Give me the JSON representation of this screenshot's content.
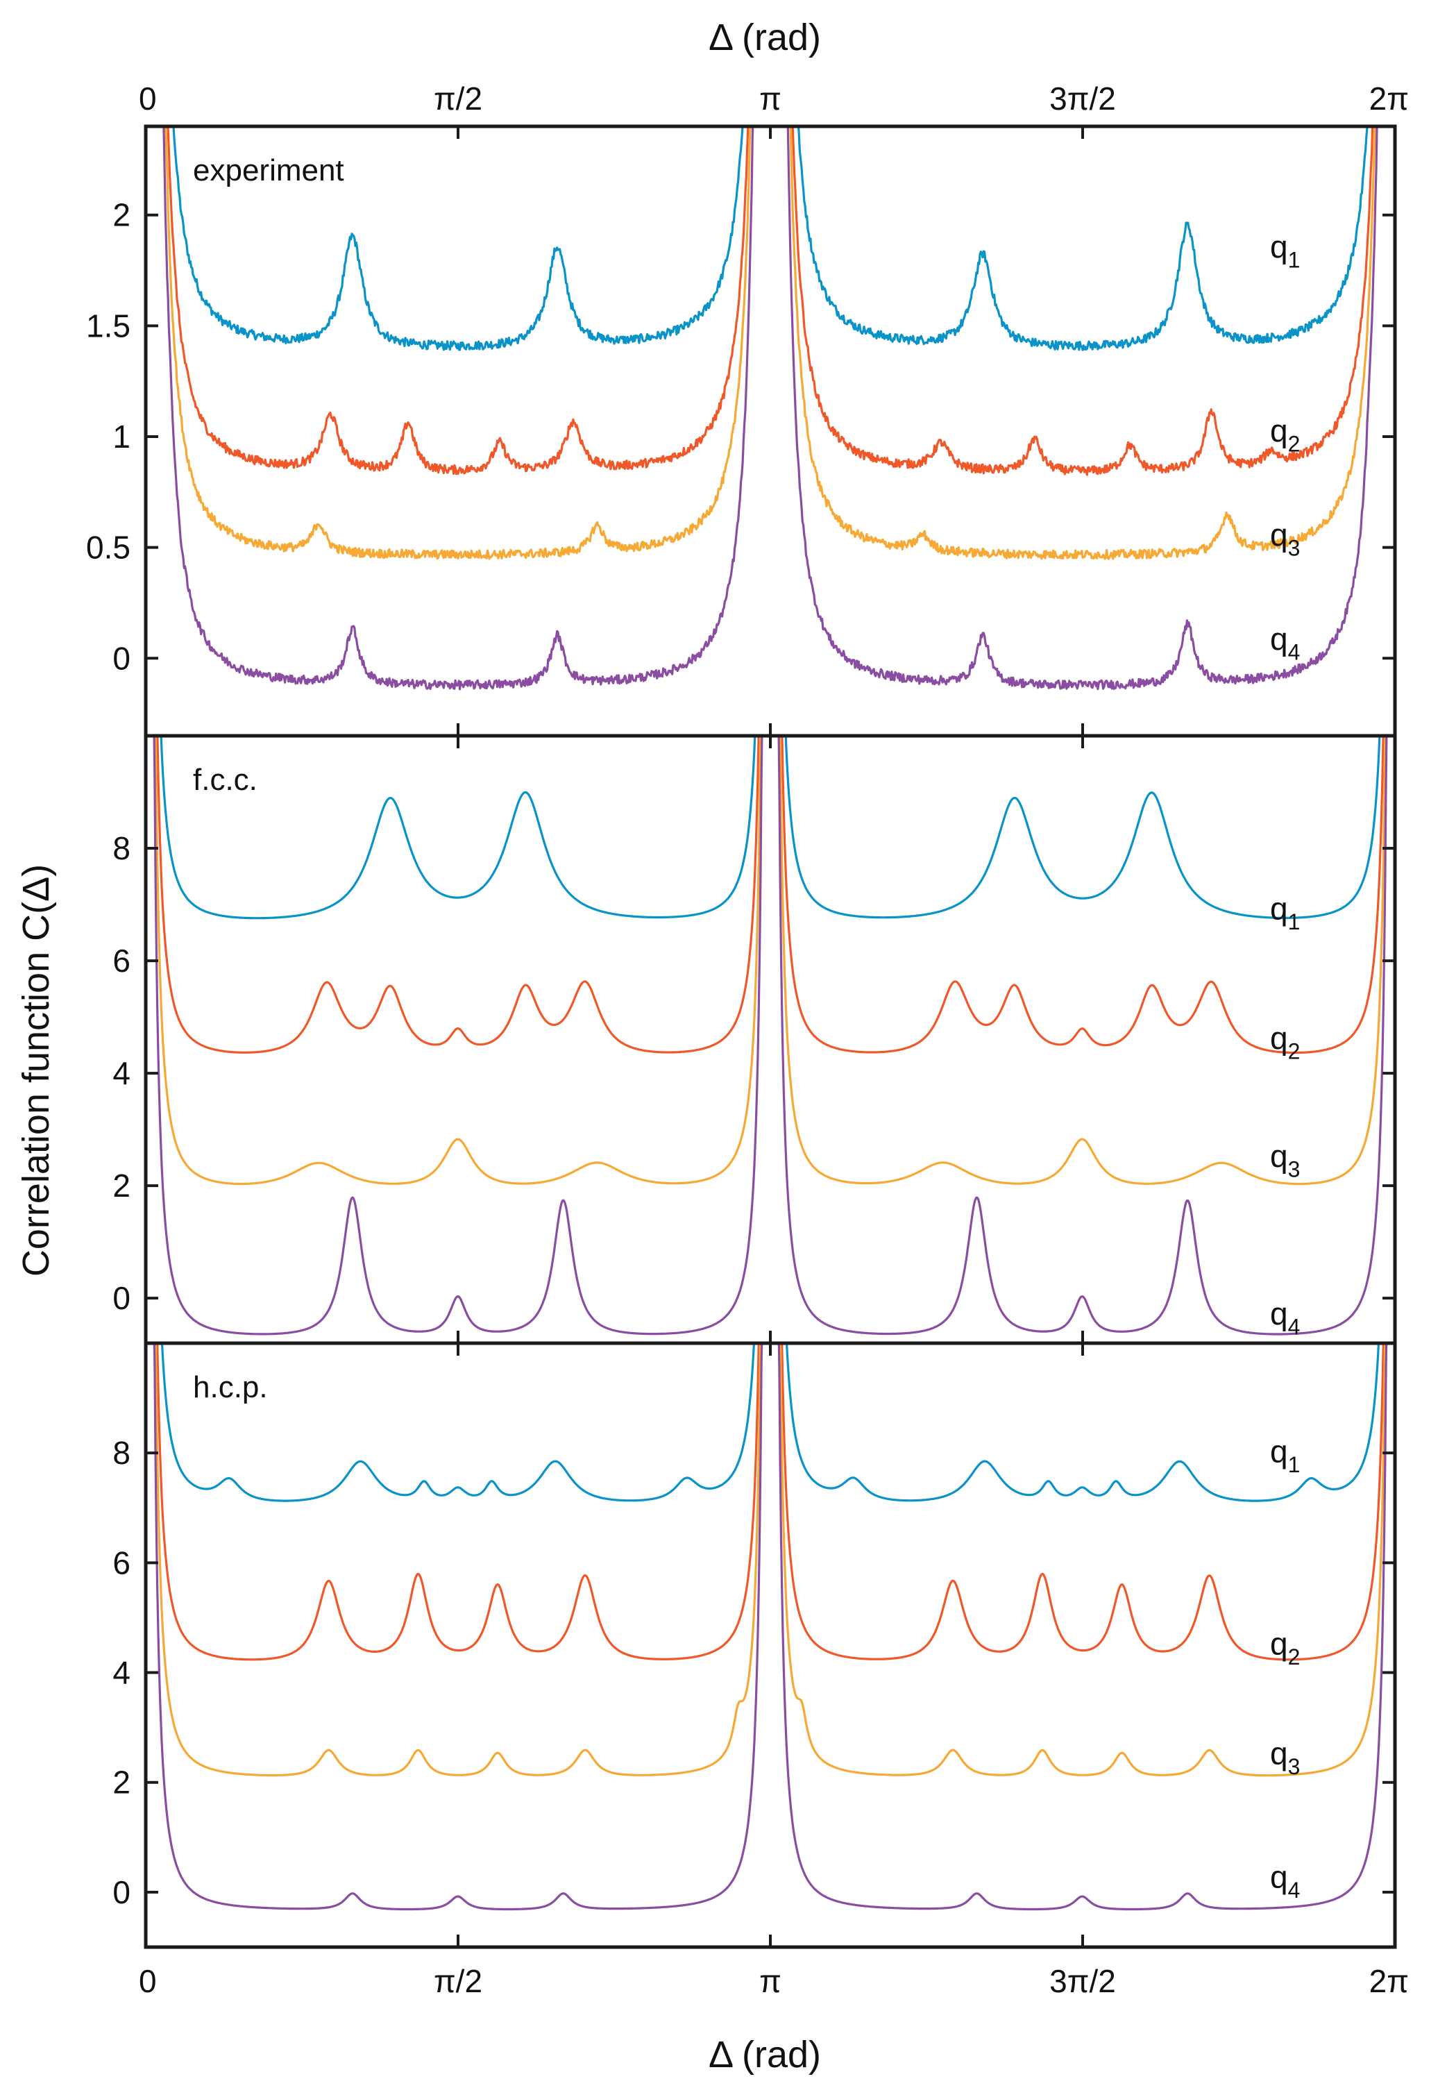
{
  "chart_data": {
    "type": "line",
    "shared_axes": {
      "xlabel": "Δ (rad)",
      "ylabel": "Correlation function C(Δ)",
      "xlim": [
        0,
        6.2832
      ],
      "x_tick_values": [
        0,
        1.5708,
        3.1416,
        4.7124,
        6.2832
      ],
      "x_tick_labels": [
        "0",
        "π/2",
        "π",
        "3π/2",
        "2π"
      ],
      "series_colors": {
        "q1": "#0a93c8",
        "q2": "#f0582a",
        "q3": "#f7a935",
        "q4": "#8a4da2"
      }
    },
    "panels": [
      {
        "id": "experiment",
        "label": "experiment",
        "ylim": [
          -0.35,
          2.4
        ],
        "y_ticks": [
          0,
          0.5,
          1,
          1.5,
          2
        ],
        "y_tick_labels": [
          "0",
          "0.5",
          "1",
          "1.5",
          "2"
        ],
        "noise": 0.018,
        "series": [
          {
            "name": "q1",
            "label": "q",
            "subscript": "1",
            "baseline": 1.38,
            "peaks": [
              [
                1.04,
                0.5,
                0.06
              ],
              [
                2.07,
                0.45,
                0.06
              ],
              [
                4.21,
                0.42,
                0.06
              ],
              [
                5.24,
                0.55,
                0.06
              ]
            ],
            "label_y": 1.85
          },
          {
            "name": "q2",
            "label": "q",
            "subscript": "2",
            "baseline": 0.82,
            "peaks": [
              [
                0.93,
                0.25,
                0.05
              ],
              [
                1.32,
                0.22,
                0.04
              ],
              [
                1.78,
                0.13,
                0.04
              ],
              [
                2.15,
                0.22,
                0.05
              ],
              [
                4.0,
                0.12,
                0.05
              ],
              [
                4.47,
                0.15,
                0.04
              ],
              [
                4.95,
                0.12,
                0.04
              ],
              [
                5.36,
                0.27,
                0.04
              ],
              [
                5.66,
                0.06,
                0.04
              ]
            ],
            "label_y": 1.02
          },
          {
            "name": "q3",
            "label": "q",
            "subscript": "3",
            "baseline": 0.45,
            "peaks": [
              [
                0.87,
                0.13,
                0.04
              ],
              [
                2.27,
                0.12,
                0.04
              ],
              [
                3.91,
                0.07,
                0.04
              ],
              [
                5.44,
                0.17,
                0.04
              ]
            ],
            "label_y": 0.55
          },
          {
            "name": "q4",
            "label": "q",
            "subscript": "4",
            "baseline": -0.14,
            "peaks": [
              [
                0.12,
                0.17,
                0.03
              ],
              [
                1.04,
                0.25,
                0.04
              ],
              [
                2.07,
                0.22,
                0.04
              ],
              [
                4.21,
                0.22,
                0.04
              ],
              [
                5.24,
                0.27,
                0.04
              ],
              [
                6.16,
                0.2,
                0.03
              ]
            ],
            "label_y": 0.08
          }
        ]
      },
      {
        "id": "fcc",
        "label": "f.c.c.",
        "ylim": [
          -0.8,
          10.0
        ],
        "y_ticks": [
          0,
          2,
          4,
          6,
          8
        ],
        "y_tick_labels": [
          "0",
          "2",
          "4",
          "6",
          "8"
        ],
        "noise": 0,
        "series": [
          {
            "name": "q1",
            "label": "q",
            "subscript": "1",
            "baseline": 6.6,
            "peaks": [
              [
                1.23,
                2.2,
                0.12
              ],
              [
                1.91,
                2.3,
                0.12
              ],
              [
                4.37,
                2.2,
                0.12
              ],
              [
                5.06,
                2.3,
                0.12
              ]
            ],
            "label_y": 6.9
          },
          {
            "name": "q2",
            "label": "q",
            "subscript": "2",
            "baseline": 4.2,
            "peaks": [
              [
                0.91,
                1.3,
                0.09
              ],
              [
                1.23,
                1.2,
                0.08
              ],
              [
                1.57,
                0.4,
                0.05
              ],
              [
                1.91,
                1.2,
                0.08
              ],
              [
                2.21,
                1.3,
                0.09
              ],
              [
                4.07,
                1.3,
                0.09
              ],
              [
                4.37,
                1.2,
                0.08
              ],
              [
                4.71,
                0.4,
                0.05
              ],
              [
                5.06,
                1.2,
                0.08
              ],
              [
                5.36,
                1.3,
                0.09
              ]
            ],
            "label_y": 4.6
          },
          {
            "name": "q3",
            "label": "q",
            "subscript": "3",
            "baseline": 1.85,
            "peaks": [
              [
                0.87,
                0.5,
                0.17
              ],
              [
                1.57,
                0.9,
                0.09
              ],
              [
                2.27,
                0.5,
                0.17
              ],
              [
                4.01,
                0.5,
                0.17
              ],
              [
                4.71,
                0.9,
                0.09
              ],
              [
                5.41,
                0.5,
                0.17
              ]
            ],
            "label_y": 2.5
          },
          {
            "name": "q4",
            "label": "q",
            "subscript": "4",
            "baseline": -0.75,
            "peaks": [
              [
                1.04,
                2.5,
                0.06
              ],
              [
                1.57,
                0.7,
                0.05
              ],
              [
                2.1,
                2.45,
                0.06
              ],
              [
                4.18,
                2.5,
                0.06
              ],
              [
                4.71,
                0.7,
                0.05
              ],
              [
                5.24,
                2.45,
                0.06
              ]
            ],
            "label_y": -0.3
          }
        ]
      },
      {
        "id": "hcp",
        "label": "h.c.p.",
        "ylim": [
          -1.0,
          10.0
        ],
        "y_ticks": [
          0,
          2,
          4,
          6,
          8
        ],
        "y_tick_labels": [
          "0",
          "2",
          "4",
          "6",
          "8"
        ],
        "noise": 0,
        "series": [
          {
            "name": "q1",
            "label": "q",
            "subscript": "1",
            "baseline": 7.0,
            "peaks": [
              [
                0.42,
                0.4,
                0.07
              ],
              [
                1.08,
                0.8,
                0.1
              ],
              [
                1.4,
                0.35,
                0.04
              ],
              [
                1.57,
                0.25,
                0.05
              ],
              [
                1.74,
                0.35,
                0.04
              ],
              [
                2.06,
                0.8,
                0.1
              ],
              [
                2.72,
                0.4,
                0.07
              ],
              [
                3.56,
                0.4,
                0.07
              ],
              [
                4.22,
                0.8,
                0.1
              ],
              [
                4.54,
                0.35,
                0.04
              ],
              [
                4.71,
                0.25,
                0.05
              ],
              [
                4.88,
                0.35,
                0.04
              ],
              [
                5.2,
                0.8,
                0.1
              ],
              [
                5.86,
                0.4,
                0.07
              ]
            ],
            "label_y": 8.0
          },
          {
            "name": "q2",
            "label": "q",
            "subscript": "2",
            "baseline": 4.1,
            "peaks": [
              [
                0.92,
                1.5,
                0.07
              ],
              [
                1.37,
                1.6,
                0.06
              ],
              [
                1.77,
                1.4,
                0.06
              ],
              [
                2.21,
                1.6,
                0.07
              ],
              [
                4.06,
                1.5,
                0.07
              ],
              [
                4.51,
                1.6,
                0.06
              ],
              [
                4.91,
                1.4,
                0.06
              ],
              [
                5.35,
                1.6,
                0.07
              ]
            ],
            "label_y": 4.5
          },
          {
            "name": "q3",
            "label": "q",
            "subscript": "3",
            "baseline": 2.05,
            "peaks": [
              [
                0.92,
                0.5,
                0.06
              ],
              [
                1.37,
                0.5,
                0.05
              ],
              [
                1.77,
                0.45,
                0.05
              ],
              [
                2.21,
                0.5,
                0.06
              ],
              [
                2.98,
                0.6,
                0.03
              ],
              [
                3.3,
                0.6,
                0.03
              ],
              [
                4.06,
                0.5,
                0.06
              ],
              [
                4.51,
                0.5,
                0.05
              ],
              [
                4.91,
                0.45,
                0.05
              ],
              [
                5.35,
                0.5,
                0.06
              ]
            ],
            "label_y": 2.5
          },
          {
            "name": "q4",
            "label": "q",
            "subscript": "4",
            "baseline": -0.35,
            "peaks": [
              [
                1.04,
                0.3,
                0.05
              ],
              [
                1.57,
                0.25,
                0.05
              ],
              [
                2.1,
                0.3,
                0.05
              ],
              [
                4.18,
                0.3,
                0.05
              ],
              [
                4.71,
                0.25,
                0.05
              ],
              [
                5.24,
                0.3,
                0.05
              ]
            ],
            "label_y": 0.25
          }
        ]
      }
    ]
  }
}
